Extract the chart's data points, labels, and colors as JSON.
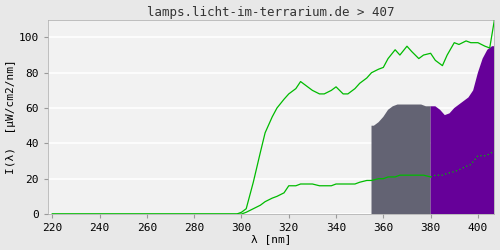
{
  "title": "lamps.licht-im-terrarium.de > 407",
  "xlabel": "λ [nm]",
  "ylabel": "I(λ)  [μW/cm2/nm]",
  "xlim": [
    218,
    407
  ],
  "ylim": [
    0,
    110
  ],
  "xticks": [
    220,
    240,
    260,
    280,
    300,
    320,
    340,
    360,
    380,
    400
  ],
  "yticks": [
    0,
    20,
    40,
    60,
    80,
    100
  ],
  "bg_color": "#e8e8e8",
  "plot_bg_color": "#f2f2f2",
  "grid_color": "#ffffff",
  "line_color": "#00bb00",
  "gray_fill_color": "#636373",
  "purple_fill_color": "#660099",
  "title_fontsize": 9,
  "axis_fontsize": 8,
  "tick_fontsize": 8,
  "upper_line_x": [
    220,
    240,
    260,
    280,
    290,
    295,
    298,
    300,
    302,
    305,
    308,
    310,
    313,
    315,
    318,
    320,
    323,
    325,
    328,
    330,
    333,
    335,
    338,
    340,
    343,
    345,
    348,
    350,
    353,
    355,
    358,
    360,
    362,
    365,
    367,
    370,
    372,
    375,
    377,
    380,
    382,
    385,
    387,
    390,
    392,
    395,
    397,
    400,
    403,
    405,
    407
  ],
  "upper_line_y": [
    0,
    0,
    0,
    0,
    0,
    0,
    0,
    1,
    3,
    18,
    35,
    46,
    55,
    60,
    65,
    68,
    71,
    75,
    72,
    70,
    68,
    68,
    70,
    72,
    68,
    68,
    71,
    74,
    77,
    80,
    82,
    83,
    88,
    93,
    90,
    95,
    92,
    88,
    90,
    91,
    87,
    84,
    90,
    97,
    96,
    98,
    97,
    97,
    95,
    94,
    110
  ],
  "lower_line_x": [
    220,
    240,
    260,
    280,
    290,
    295,
    298,
    300,
    302,
    305,
    308,
    310,
    313,
    315,
    318,
    320,
    323,
    325,
    328,
    330,
    333,
    335,
    338,
    340,
    343,
    345,
    348,
    350,
    353,
    355,
    358,
    360,
    362,
    365,
    367,
    370,
    372,
    375,
    377,
    380,
    382,
    385,
    387,
    390,
    392,
    395,
    397,
    400,
    403,
    405,
    407
  ],
  "lower_line_y": [
    0,
    0,
    0,
    0,
    0,
    0,
    0,
    0,
    1,
    3,
    5,
    7,
    9,
    10,
    12,
    16,
    16,
    17,
    17,
    17,
    16,
    16,
    16,
    17,
    17,
    17,
    17,
    18,
    19,
    19,
    20,
    20,
    21,
    21,
    22,
    22,
    22,
    22,
    22,
    21,
    22,
    22,
    23,
    24,
    25,
    27,
    28,
    33,
    33,
    34,
    36
  ],
  "gray_top_x": [
    355,
    356,
    358,
    360,
    362,
    364,
    366,
    368,
    370,
    372,
    374,
    376,
    378,
    380
  ],
  "gray_top_y": [
    50,
    50,
    52,
    55,
    59,
    61,
    62,
    62,
    62,
    62,
    62,
    62,
    61,
    61
  ],
  "purple_top_x": [
    380,
    382,
    384,
    386,
    388,
    390,
    392,
    394,
    396,
    398,
    400,
    402,
    404,
    406,
    407
  ],
  "purple_top_y": [
    61,
    61,
    59,
    56,
    57,
    60,
    62,
    64,
    66,
    70,
    80,
    88,
    93,
    95,
    95
  ]
}
